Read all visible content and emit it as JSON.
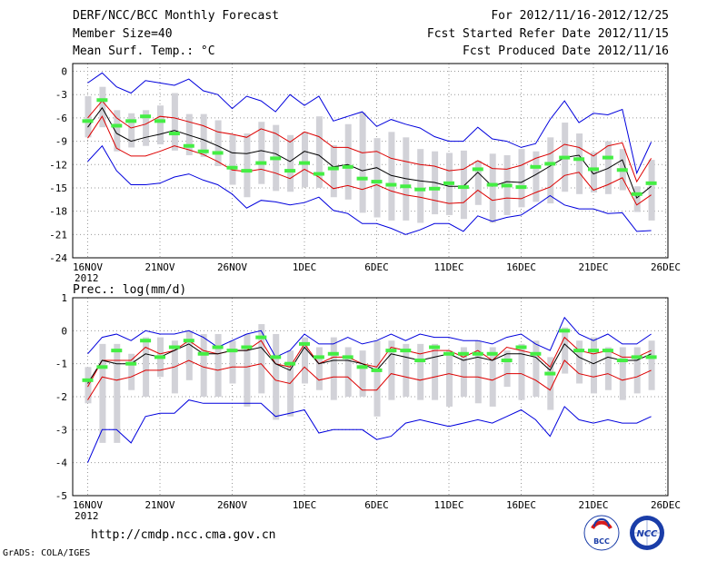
{
  "header": {
    "title": "DERF/NCC/BCC Monthly Forecast",
    "member_size": "Member Size=40",
    "variable": "Mean Surf. Temp.: °C",
    "period": "For 2012/11/16-2012/12/25",
    "started": "Fcst Started Refer Date 2012/11/15",
    "produced": "Fcst Produced Date 2012/11/16"
  },
  "footer": {
    "url": "http://cmdp.ncc.cma.gov.cn",
    "grads": "GrADS: COLA/IGES",
    "logo_left": "BCC",
    "logo_right": "NCC"
  },
  "colors": {
    "envelope": "#0000dd",
    "spread": "#dd0000",
    "mean": "#000000",
    "box": "#d2d2d8",
    "obs": "#44ee44",
    "grid": "#999999"
  },
  "chart_data": [
    {
      "type": "line",
      "title": "Mean Surf. Temp.: °C",
      "ylim": [
        -24,
        1
      ],
      "yticks": [
        0,
        -3,
        -6,
        -9,
        -12,
        -15,
        -18,
        -21,
        -24
      ],
      "xticks": [
        {
          "day": 0,
          "label": "16NOV"
        },
        {
          "day": 5,
          "label": "21NOV"
        },
        {
          "day": 10,
          "label": "26NOV"
        },
        {
          "day": 15,
          "label": "1DEC"
        },
        {
          "day": 20,
          "label": "6DEC"
        },
        {
          "day": 25,
          "label": "11DEC"
        },
        {
          "day": 30,
          "label": "16DEC"
        },
        {
          "day": 35,
          "label": "21DEC"
        },
        {
          "day": 40,
          "label": "26DEC"
        }
      ],
      "year_label": "2012",
      "days": [
        0,
        1,
        2,
        3,
        4,
        5,
        6,
        7,
        8,
        9,
        10,
        11,
        12,
        13,
        14,
        15,
        16,
        17,
        18,
        19,
        20,
        21,
        22,
        23,
        24,
        25,
        26,
        27,
        28,
        29,
        30,
        31,
        32,
        33,
        34,
        35,
        36,
        37,
        38,
        39
      ],
      "series": [
        {
          "name": "max",
          "values": [
            -1.5,
            -0.2,
            -2,
            -2.8,
            -1.2,
            -1.5,
            -1.8,
            -1,
            -2.5,
            -3,
            -4.8,
            -3.2,
            -3.8,
            -5.2,
            -3,
            -4.4,
            -3.2,
            -6.4,
            -5.8,
            -5.2,
            -7.1,
            -6.2,
            -6.8,
            -7.3,
            -8.4,
            -9,
            -9,
            -7.2,
            -8.7,
            -9,
            -9.8,
            -9.3,
            -6.2,
            -3.8,
            -6.6,
            -5.4,
            -5.6,
            -4.9,
            -13.1,
            -9.1
          ]
        },
        {
          "name": "upper",
          "values": [
            -6,
            -3.8,
            -6,
            -7.3,
            -6.8,
            -5.8,
            -6,
            -6.5,
            -7,
            -7.8,
            -8.1,
            -8.5,
            -7.4,
            -8,
            -9.1,
            -7.8,
            -8.4,
            -9.8,
            -9.8,
            -10.5,
            -10.3,
            -11.2,
            -11.6,
            -12,
            -12.2,
            -12.8,
            -12.6,
            -11.5,
            -12.5,
            -12.6,
            -12.1,
            -11.2,
            -10.6,
            -9.4,
            -9.8,
            -10.9,
            -9.6,
            -9.2,
            -14.2,
            -11.2
          ]
        },
        {
          "name": "mean",
          "values": [
            -7.2,
            -4.7,
            -8,
            -9,
            -8.5,
            -8.1,
            -7.6,
            -8.2,
            -8.8,
            -9.6,
            -10.5,
            -10.6,
            -10.2,
            -10.6,
            -11.6,
            -10.3,
            -10.8,
            -12.3,
            -12,
            -12.8,
            -12.4,
            -13.4,
            -13.8,
            -14.1,
            -14.3,
            -14.8,
            -14.8,
            -13,
            -14.8,
            -14.2,
            -14.3,
            -13.3,
            -12.2,
            -11.1,
            -10.8,
            -13.2,
            -12.5,
            -11.4,
            -16.3,
            -14.8
          ]
        },
        {
          "name": "lower",
          "values": [
            -8.6,
            -5.8,
            -9.9,
            -10.9,
            -10.9,
            -10.3,
            -9.6,
            -10.1,
            -10.7,
            -11.6,
            -12.7,
            -12.9,
            -12.6,
            -13.1,
            -13.8,
            -12.6,
            -13.6,
            -15.1,
            -14.7,
            -15.2,
            -14.6,
            -15.4,
            -15.9,
            -16.2,
            -16.6,
            -17,
            -16.9,
            -15.3,
            -16.6,
            -16.3,
            -16.4,
            -15.6,
            -14.9,
            -13.4,
            -13,
            -15.3,
            -14.6,
            -13.7,
            -17.2,
            -15.9
          ]
        },
        {
          "name": "min",
          "values": [
            -11.6,
            -9.6,
            -12.8,
            -14.6,
            -14.6,
            -14.4,
            -13.6,
            -13.2,
            -14,
            -14.6,
            -15.8,
            -17.6,
            -16.6,
            -16.8,
            -17.2,
            -16.9,
            -16.2,
            -17.9,
            -18.3,
            -19.6,
            -19.6,
            -20.2,
            -21,
            -20.4,
            -19.6,
            -19.6,
            -20.6,
            -18.6,
            -19.3,
            -18.8,
            -18.5,
            -17.3,
            -16,
            -17.2,
            -17.7,
            -17.7,
            -18.3,
            -18.2,
            -20.6,
            -20.5
          ]
        },
        {
          "name": "box_top",
          "values": [
            -3.2,
            -2,
            -5,
            -5.4,
            -5,
            -4.4,
            -2.8,
            -5.5,
            -5.5,
            -6.3,
            -8.2,
            -8,
            -6.5,
            -6.9,
            -8.2,
            -7.8,
            -5.8,
            -9.5,
            -6.8,
            -5.3,
            -8.6,
            -7.8,
            -8.5,
            -10,
            -10.3,
            -10.5,
            -10.2,
            -11.5,
            -10.6,
            -10.8,
            -10,
            -10.3,
            -8.5,
            -6.6,
            -8,
            -10.4,
            -9,
            -10,
            -14.8,
            -11.4
          ]
        },
        {
          "name": "box_bottom",
          "values": [
            -8.5,
            -7.2,
            -10.3,
            -9.8,
            -9.6,
            -9.4,
            -10.2,
            -10.8,
            -11,
            -12.2,
            -14.6,
            -16.2,
            -14.5,
            -15.4,
            -15.5,
            -14.9,
            -15,
            -16.2,
            -16.5,
            -18.2,
            -18.8,
            -19.2,
            -19.2,
            -19.5,
            -18.4,
            -18.5,
            -19,
            -17.2,
            -19.5,
            -18.5,
            -17.5,
            -16.8,
            -17,
            -15.5,
            -15.8,
            -15.6,
            -15.8,
            -15.3,
            -18.1,
            -19.2
          ]
        },
        {
          "name": "observed",
          "values": [
            -6.4,
            -3.7,
            -7,
            -6.4,
            -5.8,
            -6.4,
            -8,
            -9.6,
            -10.3,
            -10.5,
            -12.4,
            -12.8,
            -11.8,
            -11.2,
            -12.8,
            -11.8,
            -13.2,
            -12.5,
            -12.3,
            -13.8,
            -14.2,
            -14.6,
            -14.8,
            -15.2,
            -15.1,
            -14.4,
            -14.9,
            -12.6,
            -14.6,
            -14.7,
            -14.9,
            -12.3,
            -11.9,
            -11.1,
            -11.3,
            -12.6,
            -11.1,
            -12.7,
            -15.8,
            -14.4
          ]
        }
      ]
    },
    {
      "type": "line",
      "title": "Prec.: log(mm/d)",
      "ylim": [
        -5,
        1
      ],
      "yticks": [
        1,
        0,
        -1,
        -2,
        -3,
        -4,
        -5
      ],
      "xticks": [
        {
          "day": 0,
          "label": "16NOV"
        },
        {
          "day": 5,
          "label": "21NOV"
        },
        {
          "day": 10,
          "label": "26NOV"
        },
        {
          "day": 15,
          "label": "1DEC"
        },
        {
          "day": 20,
          "label": "6DEC"
        },
        {
          "day": 25,
          "label": "11DEC"
        },
        {
          "day": 30,
          "label": "16DEC"
        },
        {
          "day": 35,
          "label": "21DEC"
        },
        {
          "day": 40,
          "label": "26DEC"
        }
      ],
      "year_label": "2012",
      "days": [
        0,
        1,
        2,
        3,
        4,
        5,
        6,
        7,
        8,
        9,
        10,
        11,
        12,
        13,
        14,
        15,
        16,
        17,
        18,
        19,
        20,
        21,
        22,
        23,
        24,
        25,
        26,
        27,
        28,
        29,
        30,
        31,
        32,
        33,
        34,
        35,
        36,
        37,
        38,
        39
      ],
      "series": [
        {
          "name": "max",
          "values": [
            -0.7,
            -0.2,
            -0.1,
            -0.3,
            0,
            -0.1,
            -0.1,
            0,
            -0.2,
            -0.5,
            -0.3,
            -0.1,
            0,
            -0.8,
            -0.6,
            -0.1,
            -0.4,
            -0.4,
            -0.2,
            -0.4,
            -0.3,
            -0.1,
            -0.3,
            -0.1,
            -0.2,
            -0.2,
            -0.3,
            -0.3,
            -0.4,
            -0.2,
            -0.1,
            -0.4,
            -0.6,
            0.4,
            -0.1,
            -0.3,
            -0.1,
            -0.4,
            -0.4,
            -0.1
          ]
        },
        {
          "name": "upper",
          "values": [
            -1.7,
            -0.9,
            -0.9,
            -0.9,
            -0.5,
            -0.7,
            -0.6,
            -0.3,
            -0.6,
            -0.7,
            -0.6,
            -0.6,
            -0.3,
            -1,
            -1.1,
            -0.4,
            -1,
            -0.8,
            -0.8,
            -1,
            -1.1,
            -0.5,
            -0.6,
            -0.7,
            -0.6,
            -0.6,
            -0.8,
            -0.6,
            -0.9,
            -0.5,
            -0.6,
            -0.7,
            -1.1,
            -0.2,
            -0.6,
            -0.7,
            -0.6,
            -0.8,
            -0.8,
            -0.6
          ]
        },
        {
          "name": "mean",
          "values": [
            -1.6,
            -0.9,
            -1,
            -1,
            -0.7,
            -0.8,
            -0.6,
            -0.4,
            -0.7,
            -0.7,
            -0.6,
            -0.6,
            -0.5,
            -1,
            -1.2,
            -0.5,
            -1,
            -0.9,
            -0.9,
            -1,
            -1.2,
            -0.7,
            -0.8,
            -0.9,
            -0.8,
            -0.7,
            -0.9,
            -0.8,
            -0.9,
            -0.7,
            -0.7,
            -0.8,
            -1.2,
            -0.4,
            -0.8,
            -1,
            -0.8,
            -0.9,
            -0.9,
            -0.7
          ]
        },
        {
          "name": "lower",
          "values": [
            -2.1,
            -1.4,
            -1.5,
            -1.4,
            -1.2,
            -1.2,
            -1.1,
            -0.9,
            -1.1,
            -1.2,
            -1.1,
            -1.1,
            -1,
            -1.5,
            -1.6,
            -1.1,
            -1.5,
            -1.4,
            -1.4,
            -1.8,
            -1.8,
            -1.3,
            -1.4,
            -1.5,
            -1.4,
            -1.3,
            -1.4,
            -1.4,
            -1.5,
            -1.3,
            -1.3,
            -1.5,
            -1.8,
            -0.9,
            -1.3,
            -1.4,
            -1.3,
            -1.5,
            -1.4,
            -1.2
          ]
        },
        {
          "name": "min",
          "values": [
            -4,
            -3,
            -3,
            -3.4,
            -2.6,
            -2.5,
            -2.5,
            -2.1,
            -2.2,
            -2.2,
            -2.2,
            -2.2,
            -2.2,
            -2.6,
            -2.5,
            -2.4,
            -3.1,
            -3,
            -3,
            -3,
            -3.3,
            -3.2,
            -2.8,
            -2.7,
            -2.8,
            -2.9,
            -2.8,
            -2.7,
            -2.8,
            -2.6,
            -2.4,
            -2.7,
            -3.2,
            -2.3,
            -2.7,
            -2.8,
            -2.7,
            -2.8,
            -2.8,
            -2.6
          ]
        },
        {
          "name": "box_top",
          "values": [
            -1.1,
            -0.4,
            -0.4,
            -0.7,
            -0.2,
            -0.2,
            -0.3,
            0,
            -0.1,
            -0.1,
            -0.3,
            -0.1,
            0.2,
            -0.1,
            -0.6,
            -0.2,
            -0.5,
            -0.2,
            -0.5,
            -0.6,
            -0.3,
            -0.3,
            -0.4,
            -0.4,
            -0.4,
            -0.6,
            -0.5,
            -0.3,
            -0.5,
            -0.6,
            -0.4,
            -0.3,
            -0.8,
            0.1,
            -0.3,
            -0.2,
            -0.5,
            -0.5,
            -0.5,
            -0.3
          ]
        },
        {
          "name": "box_bottom",
          "values": [
            -2.2,
            -3.4,
            -3.4,
            -1.8,
            -2,
            -1.4,
            -1.9,
            -1.5,
            -2,
            -2,
            -1.6,
            -2.3,
            -1.9,
            -2.7,
            -2.6,
            -1.6,
            -1.8,
            -2.1,
            -2,
            -2,
            -2.6,
            -2.1,
            -2,
            -2.1,
            -2.1,
            -2.3,
            -2,
            -2.2,
            -2.3,
            -1.7,
            -2.1,
            -2,
            -2.4,
            -1.3,
            -1.6,
            -1.9,
            -1.8,
            -2.1,
            -1.9,
            -1.8
          ]
        },
        {
          "name": "observed",
          "values": [
            -1.5,
            -1.1,
            -0.6,
            -1,
            -0.3,
            -0.8,
            -0.5,
            -0.3,
            -0.7,
            -0.5,
            -0.6,
            -0.5,
            -0.2,
            -0.8,
            -1,
            -0.4,
            -0.8,
            -0.7,
            -0.8,
            -1.1,
            -1.2,
            -0.6,
            -0.6,
            -0.9,
            -0.5,
            -0.7,
            -0.7,
            -0.7,
            -0.7,
            -0.9,
            -0.5,
            -0.7,
            -1.3,
            0,
            -0.6,
            -0.6,
            -0.6,
            -0.9,
            -0.8,
            -0.8
          ]
        }
      ]
    }
  ]
}
